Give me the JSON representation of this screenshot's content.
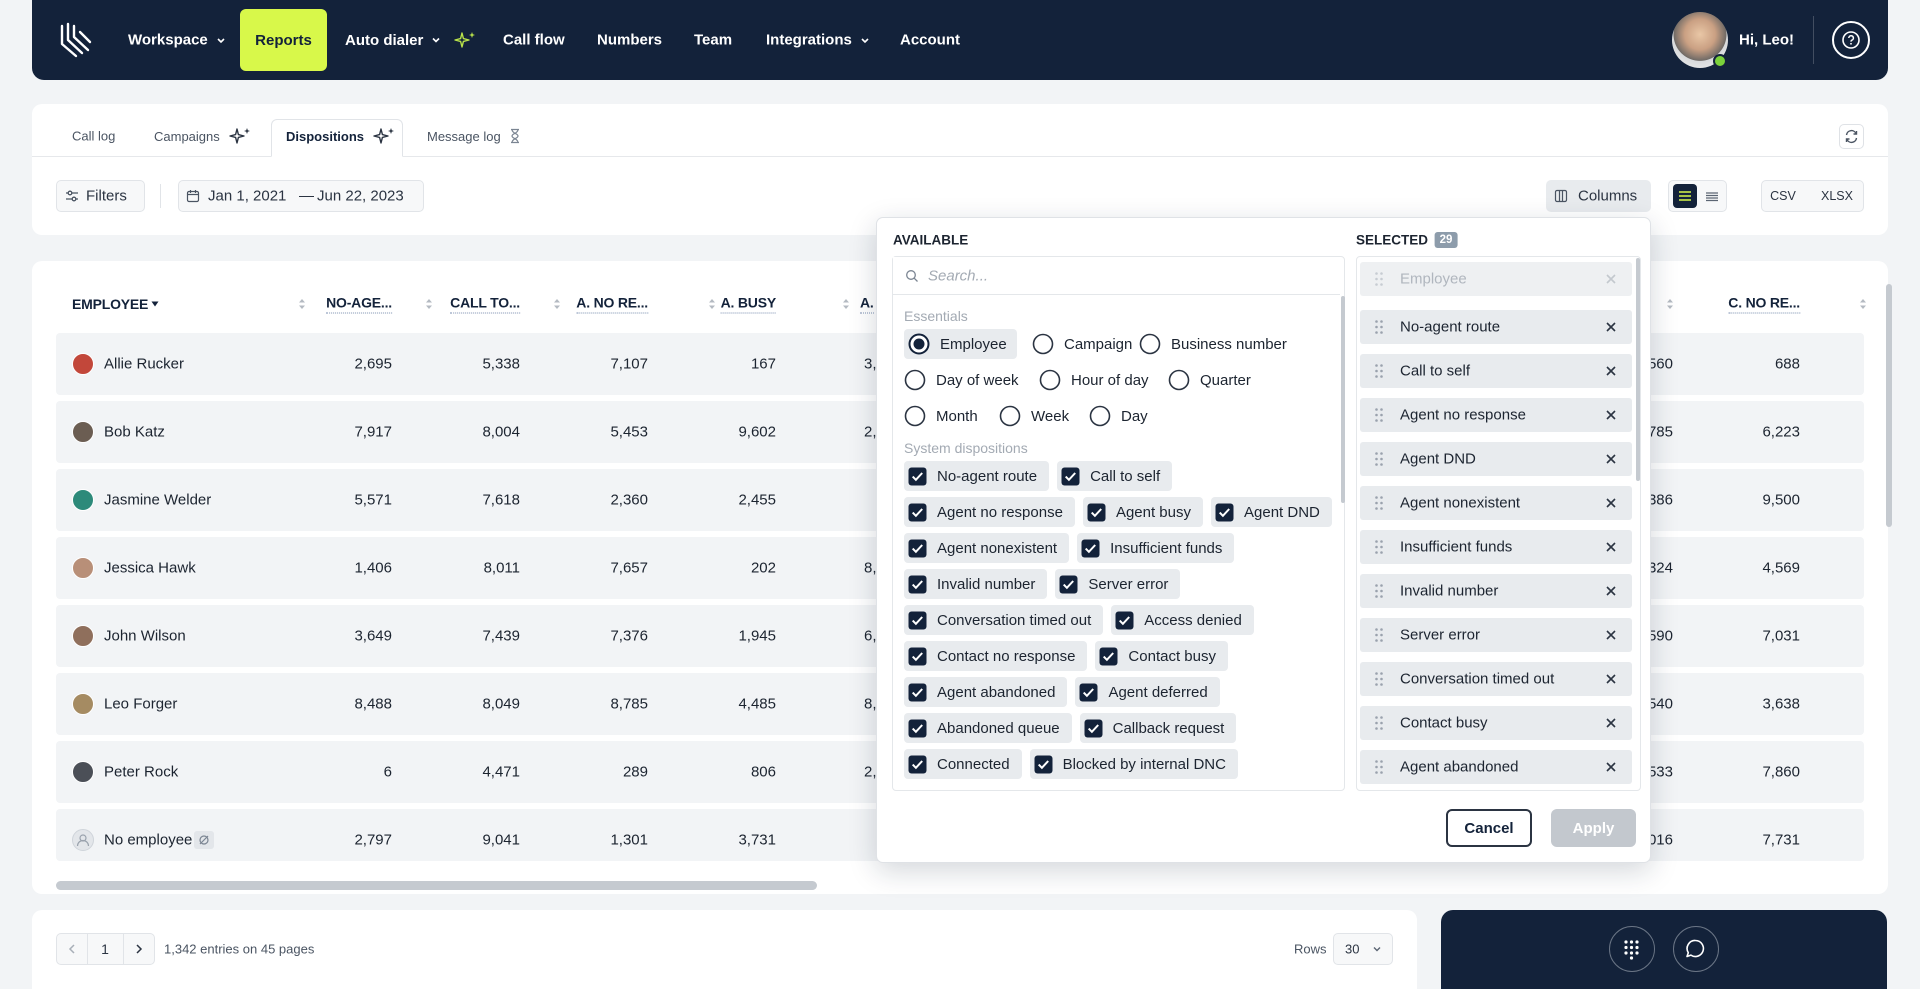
{
  "nav": {
    "items": [
      {
        "label": "Workspace",
        "dropdown": true
      },
      {
        "label": "Reports",
        "active": true
      },
      {
        "label": "Auto dialer",
        "dropdown": true,
        "sparkle": true
      },
      {
        "label": "Call flow"
      },
      {
        "label": "Numbers"
      },
      {
        "label": "Team"
      },
      {
        "label": "Integrations",
        "dropdown": true
      },
      {
        "label": "Account"
      }
    ],
    "greeting": "Hi, Leo!"
  },
  "tabs": [
    {
      "label": "Call log"
    },
    {
      "label": "Campaigns",
      "sparkle": true
    },
    {
      "label": "Dispositions",
      "sparkle": true,
      "active": true
    },
    {
      "label": "Message log",
      "pending": true
    }
  ],
  "toolbar": {
    "filters": "Filters",
    "date_from": "Jan 1, 2021",
    "date_separator": "—",
    "date_to": "Jun 22, 2023",
    "columns": "Columns",
    "exports": [
      "CSV",
      "XLSX"
    ]
  },
  "table": {
    "employee_header": "EMPLOYEE",
    "headers": [
      "NO-AGE...",
      "CALL TO...",
      "A. NO RE...",
      "A. BUSY",
      "A.",
      "C. NO RE..."
    ],
    "rows": [
      {
        "name": "Allie Rucker",
        "cells": [
          "2,695",
          "5,338",
          "7,107",
          "167",
          "3,",
          "560",
          "688"
        ]
      },
      {
        "name": "Bob Katz",
        "cells": [
          "7,917",
          "8,004",
          "5,453",
          "9,602",
          "2,",
          "785",
          "6,223"
        ]
      },
      {
        "name": "Jasmine Welder",
        "cells": [
          "5,571",
          "7,618",
          "2,360",
          "2,455",
          null,
          "386",
          "9,500"
        ]
      },
      {
        "name": "Jessica Hawk",
        "cells": [
          "1,406",
          "8,011",
          "7,657",
          "202",
          "8,",
          "324",
          "4,569"
        ]
      },
      {
        "name": "John Wilson",
        "cells": [
          "3,649",
          "7,439",
          "7,376",
          "1,945",
          "6,",
          "590",
          "7,031"
        ]
      },
      {
        "name": "Leo Forger",
        "cells": [
          "8,488",
          "8,049",
          "8,785",
          "4,485",
          "8,",
          "540",
          "3,638"
        ]
      },
      {
        "name": "Peter Rock",
        "cells": [
          "6",
          "4,471",
          "289",
          "806",
          "2,",
          "533",
          "7,860"
        ]
      },
      {
        "name": "No employee",
        "cells": [
          "2,797",
          "9,041",
          "1,301",
          "3,731",
          null,
          "016",
          "7,731"
        ]
      }
    ]
  },
  "column_picker": {
    "available_title": "AVAILABLE",
    "search_placeholder": "Search...",
    "essentials_title": "Essentials",
    "essentials": [
      [
        {
          "label": "Employee",
          "selected": true
        },
        {
          "label": "Campaign"
        },
        {
          "label": "Business number"
        }
      ],
      [
        {
          "label": "Day of week"
        },
        {
          "label": "Hour of day"
        },
        {
          "label": "Quarter"
        }
      ],
      [
        {
          "label": "Month"
        },
        {
          "label": "Week"
        },
        {
          "label": "Day"
        }
      ]
    ],
    "dispositions_title": "System dispositions",
    "dispositions": [
      [
        "No-agent route",
        "Call to self"
      ],
      [
        "Agent no response",
        "Agent busy",
        "Agent DND"
      ],
      [
        "Agent nonexistent",
        "Insufficient funds"
      ],
      [
        "Invalid number",
        "Server error"
      ],
      [
        "Conversation timed out",
        "Access denied"
      ],
      [
        "Contact no response",
        "Contact busy"
      ],
      [
        "Agent abandoned",
        "Agent deferred"
      ],
      [
        "Abandoned queue",
        "Callback request"
      ],
      [
        "Connected",
        "Blocked by internal DNC"
      ]
    ],
    "selected_title": "SELECTED",
    "selected_count": 29,
    "selected": [
      {
        "label": "Employee",
        "locked": true
      },
      {
        "label": "No-agent route"
      },
      {
        "label": "Call to self"
      },
      {
        "label": "Agent no response"
      },
      {
        "label": "Agent DND"
      },
      {
        "label": "Agent nonexistent"
      },
      {
        "label": "Insufficient funds"
      },
      {
        "label": "Invalid number"
      },
      {
        "label": "Server error"
      },
      {
        "label": "Conversation timed out"
      },
      {
        "label": "Contact busy"
      },
      {
        "label": "Agent abandoned"
      }
    ],
    "cancel": "Cancel",
    "apply": "Apply"
  },
  "pagination": {
    "page": 1,
    "summary": "1,342 entries on 45 pages",
    "rows_label": "Rows",
    "rows_value": 30
  }
}
